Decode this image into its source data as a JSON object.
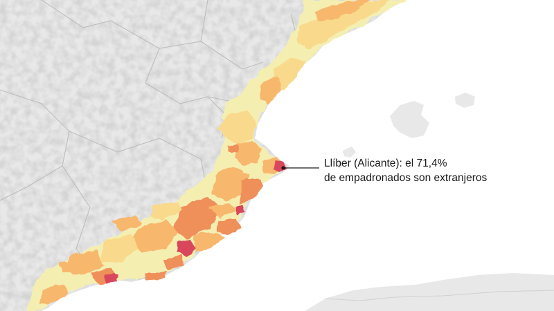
{
  "annotation": {
    "line1": "Llíber (Alicante): el 71,4%",
    "line2": "de empadronados son extranjeros"
  },
  "colors": {
    "sea": "#ffffff",
    "land": "#e8e8e8",
    "relief": "#d3d3d3",
    "borders": "#bdbdbd",
    "scale_low": "#f4efb0",
    "scale_mid_low": "#f9d98c",
    "scale_mid": "#f7b76d",
    "scale_mid_high": "#ef8f5a",
    "scale_high": "#d9475b"
  }
}
